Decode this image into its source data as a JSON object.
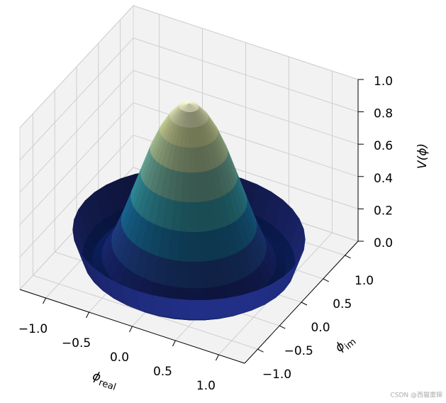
{
  "chart_data": {
    "type": "surface",
    "xlabel": {
      "symbol": "ϕ",
      "subscript": "real"
    },
    "ylabel": {
      "symbol": "ϕ",
      "subscript": "im"
    },
    "zlabel": "V(ϕ)",
    "xlim": [
      -1.3,
      1.3
    ],
    "ylim": [
      -1.3,
      1.3
    ],
    "zlim": [
      0,
      1
    ],
    "xticks": [
      {
        "value": -1,
        "label": "−1.0"
      },
      {
        "value": -0.5,
        "label": "−0.5"
      },
      {
        "value": 0,
        "label": "0.0"
      },
      {
        "value": 0.5,
        "label": "0.5"
      },
      {
        "value": 1,
        "label": "1.0"
      }
    ],
    "yticks": [
      {
        "value": -1,
        "label": "−1.0"
      },
      {
        "value": -0.5,
        "label": "−0.5"
      },
      {
        "value": 0,
        "label": "0.0"
      },
      {
        "value": 0.5,
        "label": "0.5"
      },
      {
        "value": 1,
        "label": "1.0"
      }
    ],
    "zticks": [
      {
        "value": 0,
        "label": "0.0"
      },
      {
        "value": 0.2,
        "label": "0.2"
      },
      {
        "value": 0.4,
        "label": "0.4"
      },
      {
        "value": 0.6,
        "label": "0.6"
      },
      {
        "value": 0.8,
        "label": "0.8"
      },
      {
        "value": 1,
        "label": "1.0"
      }
    ],
    "surface": {
      "r": [
        0,
        0.1,
        0.2,
        0.3,
        0.4,
        0.5,
        0.6,
        0.7,
        0.8,
        0.9,
        1.0,
        1.1,
        1.2
      ],
      "z": [
        1,
        0.98,
        0.92,
        0.83,
        0.71,
        0.56,
        0.41,
        0.26,
        0.13,
        0.04,
        0,
        0.04,
        0.19
      ]
    },
    "colormap": "YlGnBu_r",
    "grid": true
  },
  "watermark": "CSDN @西猫雷婶"
}
